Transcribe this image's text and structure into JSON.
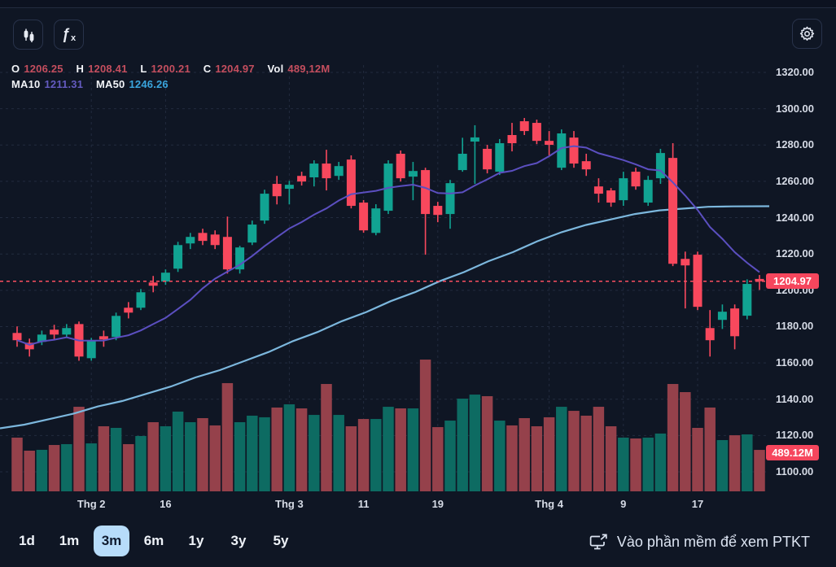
{
  "window": {
    "background": "#0f1624"
  },
  "toolbar": {
    "candlestick_tool": "candlestick chart tool",
    "fx_glyph": "ƒ",
    "fx_sub": "x",
    "settings_tool": "settings"
  },
  "legend": {
    "o_label": "O",
    "o_value": "1206.25",
    "h_label": "H",
    "h_value": "1208.41",
    "l_label": "L",
    "l_value": "1200.21",
    "c_label": "C",
    "c_value": "1204.97",
    "vol_label": "Vol",
    "vol_value": "489,12M",
    "ma10_label": "MA10",
    "ma10_value": "1211.31",
    "ma50_label": "MA50",
    "ma50_value": "1246.26"
  },
  "timeframes": {
    "options": [
      "1d",
      "1m",
      "3m",
      "6m",
      "1y",
      "3y",
      "5y"
    ],
    "selected": "3m"
  },
  "footer_link": {
    "label": "Vào phần mềm để xem PTKT",
    "icon": "external-monitor-icon"
  },
  "colors": {
    "up": "#11a392",
    "down": "#f8485d",
    "volume_up": "#0d6b62",
    "volume_down": "#95414b",
    "ma10": "#5b4fc0",
    "ma50": "#7cb7dd",
    "grid": "#222b3e",
    "axis_text": "#d6dbe6",
    "last_price_line": "#fb4e61",
    "badge_bg": "#f6465d",
    "selected_timeframe_bg": "#b7dcfa"
  },
  "chart_data": {
    "type": "candlestick",
    "title": "",
    "legend_position": "top-left",
    "grid": "dashed",
    "x_axis": {
      "tick_indices": [
        6,
        12,
        22,
        28,
        34,
        43,
        49,
        55
      ],
      "tick_labels": [
        "Thg 2",
        "16",
        "Thg 3",
        "11",
        "19",
        "Thg 4",
        "9",
        "17"
      ]
    },
    "y_axis": {
      "min": 1100,
      "max": 1320,
      "tick_step": 20,
      "tick_labels": [
        "1320.00",
        "1300.00",
        "1280.00",
        "1260.00",
        "1240.00",
        "1220.00",
        "1200.00",
        "1180.00",
        "1160.00",
        "1140.00",
        "1120.00",
        "1100.00"
      ]
    },
    "last_price": 1204.97,
    "last_price_label": "1204.97",
    "last_volume_label": "489.12M",
    "ma10_period": 10,
    "ma10_value": 1211.31,
    "ma50_value": 1246.26,
    "ma50_line_points": [
      [
        0,
        1124
      ],
      [
        30,
        1126
      ],
      [
        60,
        1129
      ],
      [
        90,
        1132
      ],
      [
        120,
        1136
      ],
      [
        150,
        1139
      ],
      [
        180,
        1143
      ],
      [
        210,
        1147
      ],
      [
        240,
        1152
      ],
      [
        270,
        1156
      ],
      [
        300,
        1161
      ],
      [
        330,
        1166
      ],
      [
        360,
        1172
      ],
      [
        390,
        1177
      ],
      [
        420,
        1183
      ],
      [
        450,
        1188
      ],
      [
        480,
        1194
      ],
      [
        510,
        1199
      ],
      [
        540,
        1205
      ],
      [
        570,
        1210
      ],
      [
        600,
        1216
      ],
      [
        630,
        1221
      ],
      [
        660,
        1227
      ],
      [
        690,
        1232
      ],
      [
        720,
        1236
      ],
      [
        750,
        1239
      ],
      [
        780,
        1242
      ],
      [
        810,
        1244
      ],
      [
        840,
        1245
      ],
      [
        870,
        1246
      ],
      [
        900,
        1246.2
      ],
      [
        945,
        1246.3
      ]
    ],
    "candles_ohlc": [
      [
        1176.5,
        1180.1,
        1168.9,
        1172.5
      ],
      [
        1171.1,
        1173.4,
        1163.5,
        1167.5
      ],
      [
        1171.6,
        1177.8,
        1169.8,
        1175.6
      ],
      [
        1178.3,
        1181.0,
        1172.9,
        1175.6
      ],
      [
        1175.6,
        1181.4,
        1173.8,
        1179.2
      ],
      [
        1181.4,
        1182.8,
        1161.2,
        1163.5
      ],
      [
        1162.6,
        1173.8,
        1161.2,
        1172.0
      ],
      [
        1174.7,
        1177.8,
        1168.9,
        1172.9
      ],
      [
        1174.3,
        1187.7,
        1172.5,
        1185.9
      ],
      [
        1190.4,
        1193.5,
        1184.5,
        1187.7
      ],
      [
        1190.4,
        1200.7,
        1189.1,
        1198.9
      ],
      [
        1204.3,
        1207.9,
        1198.9,
        1202.5
      ],
      [
        1204.8,
        1211.5,
        1203.0,
        1209.7
      ],
      [
        1211.9,
        1226.7,
        1210.1,
        1224.9
      ],
      [
        1225.8,
        1231.6,
        1222.7,
        1229.4
      ],
      [
        1231.6,
        1233.9,
        1224.9,
        1227.2
      ],
      [
        1230.7,
        1233.0,
        1222.7,
        1224.9
      ],
      [
        1229.4,
        1240.6,
        1209.2,
        1211.5
      ],
      [
        1211.5,
        1224.5,
        1209.2,
        1223.6
      ],
      [
        1226.3,
        1238.4,
        1224.9,
        1236.2
      ],
      [
        1238.4,
        1255.4,
        1236.6,
        1253.2
      ],
      [
        1258.6,
        1263.0,
        1247.3,
        1251.8
      ],
      [
        1255.9,
        1260.3,
        1247.3,
        1258.1
      ],
      [
        1263.0,
        1265.3,
        1257.7,
        1259.9
      ],
      [
        1262.2,
        1271.6,
        1257.2,
        1269.8
      ],
      [
        1269.8,
        1277.4,
        1255.0,
        1261.7
      ],
      [
        1263.0,
        1270.7,
        1260.8,
        1268.4
      ],
      [
        1272.0,
        1274.3,
        1245.1,
        1246.5
      ],
      [
        1248.3,
        1249.7,
        1231.7,
        1233.0
      ],
      [
        1231.6,
        1247.4,
        1230.3,
        1245.1
      ],
      [
        1243.8,
        1271.6,
        1242.0,
        1269.8
      ],
      [
        1275.2,
        1277.0,
        1259.9,
        1261.7
      ],
      [
        1262.6,
        1270.7,
        1249.6,
        1265.7
      ],
      [
        1266.2,
        1267.5,
        1219.6,
        1242.0
      ],
      [
        1246.5,
        1248.7,
        1237.5,
        1241.5
      ],
      [
        1242.0,
        1260.8,
        1233.9,
        1259.0
      ],
      [
        1266.2,
        1284.0,
        1265.3,
        1275.2
      ],
      [
        1281.9,
        1290.9,
        1258.6,
        1284.2
      ],
      [
        1277.9,
        1280.1,
        1264.4,
        1266.6
      ],
      [
        1265.3,
        1283.3,
        1263.5,
        1281.0
      ],
      [
        1285.5,
        1292.2,
        1276.5,
        1281.0
      ],
      [
        1293.1,
        1294.9,
        1285.5,
        1287.7
      ],
      [
        1292.2,
        1294.0,
        1280.5,
        1282.3
      ],
      [
        1282.3,
        1287.7,
        1274.3,
        1280.1
      ],
      [
        1267.5,
        1288.6,
        1266.2,
        1286.4
      ],
      [
        1284.1,
        1287.7,
        1267.5,
        1269.8
      ],
      [
        1271.1,
        1275.2,
        1263.0,
        1266.6
      ],
      [
        1257.2,
        1261.7,
        1248.3,
        1253.2
      ],
      [
        1255.0,
        1256.3,
        1246.0,
        1248.3
      ],
      [
        1249.6,
        1265.3,
        1246.5,
        1261.7
      ],
      [
        1265.3,
        1267.5,
        1255.4,
        1257.2
      ],
      [
        1248.3,
        1263.0,
        1246.5,
        1260.8
      ],
      [
        1261.7,
        1277.9,
        1258.6,
        1275.6
      ],
      [
        1272.9,
        1281.0,
        1213.3,
        1214.6
      ],
      [
        1217.3,
        1221.3,
        1190.0,
        1213.7
      ],
      [
        1219.6,
        1221.3,
        1189.1,
        1190.9
      ],
      [
        1179.2,
        1189.1,
        1163.5,
        1172.5
      ],
      [
        1183.7,
        1192.2,
        1178.7,
        1188.2
      ],
      [
        1190.0,
        1192.2,
        1167.5,
        1174.7
      ],
      [
        1186.0,
        1206.0,
        1184.0,
        1203.5
      ],
      [
        1206.25,
        1208.41,
        1200.21,
        1204.97
      ]
    ],
    "volumes_m": [
      634,
      480,
      490,
      547,
      557,
      998,
      566,
      768,
      749,
      557,
      653,
      816,
      768,
      941,
      816,
      864,
      778,
      1277,
      816,
      893,
      874,
      989,
      1027,
      979,
      902,
      1267,
      902,
      768,
      854,
      854,
      998,
      979,
      979,
      1555,
      758,
      835,
      1094,
      1142,
      1123,
      835,
      778,
      864,
      768,
      874,
      998,
      950,
      893,
      998,
      768,
      634,
      624,
      634,
      682,
      1267,
      1171,
      749,
      989,
      605,
      662,
      672,
      489.12
    ]
  }
}
